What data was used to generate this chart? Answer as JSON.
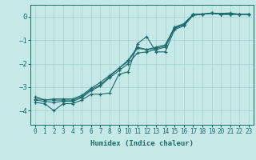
{
  "xlabel": "Humidex (Indice chaleur)",
  "ylabel": "",
  "bg_color": "#c5e8e8",
  "grid_color": "#aad4d4",
  "line_color": "#1e6b6b",
  "xlim": [
    -0.5,
    23.5
  ],
  "ylim": [
    -4.6,
    0.5
  ],
  "yticks": [
    0,
    -1,
    -2,
    -3,
    -4
  ],
  "xticks": [
    0,
    1,
    2,
    3,
    4,
    5,
    6,
    7,
    8,
    9,
    10,
    11,
    12,
    13,
    14,
    15,
    16,
    17,
    18,
    19,
    20,
    21,
    22,
    23
  ],
  "series": [
    {
      "x": [
        0,
        1,
        2,
        3,
        4,
        5,
        6,
        7,
        8,
        9,
        10,
        11,
        12,
        13,
        14,
        15,
        16,
        17,
        18,
        19,
        20,
        21,
        22,
        23
      ],
      "y": [
        -3.65,
        -3.7,
        -4.0,
        -3.7,
        -3.7,
        -3.55,
        -3.3,
        -3.3,
        -3.25,
        -2.45,
        -2.35,
        -1.15,
        -0.85,
        -1.5,
        -1.5,
        -0.55,
        -0.4,
        0.05,
        0.1,
        0.15,
        0.1,
        0.1,
        0.1,
        0.1
      ]
    },
    {
      "x": [
        0,
        1,
        2,
        3,
        4,
        5,
        6,
        7,
        8,
        9,
        10,
        11,
        12,
        13,
        14,
        15,
        16,
        17,
        18,
        19,
        20,
        21,
        22,
        23
      ],
      "y": [
        -3.55,
        -3.6,
        -3.65,
        -3.6,
        -3.6,
        -3.45,
        -3.15,
        -2.95,
        -2.6,
        -2.3,
        -2.0,
        -1.55,
        -1.5,
        -1.4,
        -1.3,
        -0.5,
        -0.35,
        0.1,
        0.1,
        0.15,
        0.1,
        0.1,
        0.1,
        0.1
      ]
    },
    {
      "x": [
        0,
        2,
        3,
        4,
        5,
        6,
        7,
        8,
        9,
        10,
        11,
        12,
        13,
        14,
        15,
        16,
        17,
        21,
        22,
        23
      ],
      "y": [
        -3.5,
        -3.55,
        -3.55,
        -3.55,
        -3.4,
        -3.1,
        -2.9,
        -2.55,
        -2.2,
        -1.9,
        -1.35,
        -1.4,
        -1.35,
        -1.25,
        -0.45,
        -0.35,
        0.1,
        0.15,
        0.1,
        0.1
      ]
    },
    {
      "x": [
        0,
        1,
        2,
        3,
        4,
        5,
        6,
        7,
        8,
        9,
        10,
        11,
        12,
        13,
        14,
        15,
        16,
        17,
        18,
        19,
        20,
        21,
        22,
        23
      ],
      "y": [
        -3.4,
        -3.55,
        -3.5,
        -3.5,
        -3.5,
        -3.35,
        -3.05,
        -2.8,
        -2.5,
        -2.2,
        -1.85,
        -1.3,
        -1.4,
        -1.3,
        -1.2,
        -0.45,
        -0.3,
        0.1,
        0.1,
        0.15,
        0.1,
        0.1,
        0.1,
        0.1
      ]
    }
  ]
}
